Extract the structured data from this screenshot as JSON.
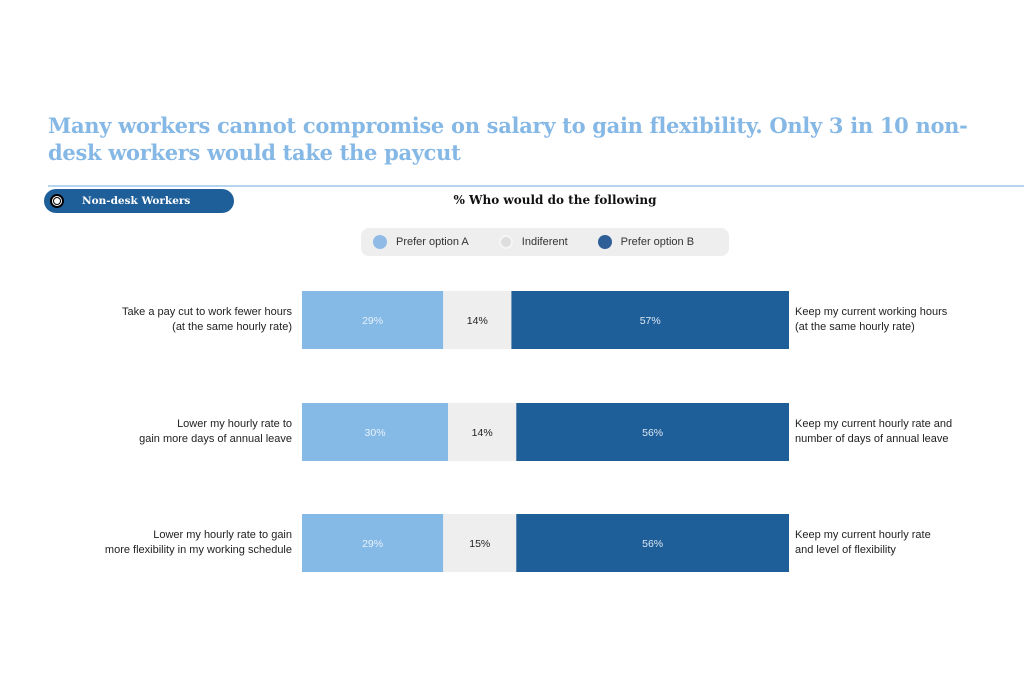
{
  "title": "Many workers cannot compromise on salary to gain flexibility. Only 3 in 10 non-desk workers would take the paycut",
  "filter": {
    "label": "Non-desk Workers"
  },
  "chart_data": {
    "type": "bar",
    "stacked": true,
    "orientation": "horizontal",
    "title": "% Who would do the following",
    "legend": [
      "Prefer option A",
      "Indiferent",
      "Prefer option B"
    ],
    "legend_position": "top",
    "colors": [
      "#85b9e6",
      "#eeeeee",
      "#1f5f99"
    ],
    "categories": [
      {
        "a": "Take a pay cut to work fewer hours\n(at the same  hourly rate)",
        "b": "Keep my current working hours\n(at the same hourly rate)"
      },
      {
        "a": "Lower my hourly rate to\ngain more days of annual leave",
        "b": "Keep my current hourly rate and\nnumber of days of annual leave"
      },
      {
        "a": "Lower my hourly rate to gain\nmore flexibility in my working schedule",
        "b": "Keep my current hourly rate\nand level of flexibility"
      }
    ],
    "series": [
      {
        "name": "Prefer option A",
        "values": [
          29,
          30,
          29
        ]
      },
      {
        "name": "Indiferent",
        "values": [
          14,
          14,
          15
        ]
      },
      {
        "name": "Prefer option B",
        "values": [
          57,
          56,
          56
        ]
      }
    ],
    "xlim": [
      0,
      100
    ]
  }
}
